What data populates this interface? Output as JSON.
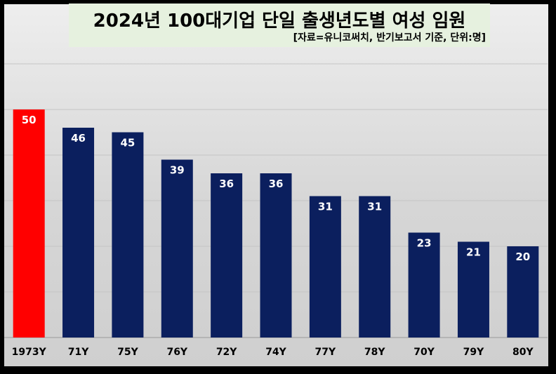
{
  "chart_data": {
    "type": "bar",
    "title": "2024년 100대기업 단일 출생년도별 여성 임원",
    "subtitle": "[자료=유니코써치, 반기보고서 기준, 단위:명]",
    "categories": [
      "1973Y",
      "71Y",
      "75Y",
      "76Y",
      "72Y",
      "74Y",
      "77Y",
      "78Y",
      "70Y",
      "79Y",
      "80Y"
    ],
    "values": [
      50,
      46,
      45,
      39,
      36,
      36,
      31,
      31,
      23,
      21,
      20
    ],
    "colors": [
      "#ff0000",
      "#0b1f5e",
      "#0b1f5e",
      "#0b1f5e",
      "#0b1f5e",
      "#0b1f5e",
      "#0b1f5e",
      "#0b1f5e",
      "#0b1f5e",
      "#0b1f5e",
      "#0b1f5e"
    ],
    "ylim": [
      0,
      60
    ],
    "grid": true,
    "data_labels": true
  }
}
